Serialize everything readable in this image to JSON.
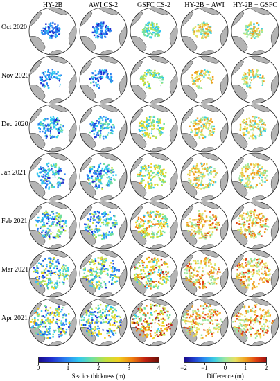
{
  "columns": [
    "HY-2B",
    "AWI CS-2",
    "GSFC CS-2",
    "HY-2B − AWI",
    "HY-2B − GSFC"
  ],
  "rows": [
    "Oct 2020",
    "Nov 2020",
    "Dec 2020",
    "Jan 2021",
    "Feb 2021",
    "Mar 2021",
    "Apr 2021"
  ],
  "colorbars": {
    "thickness": {
      "title": "Sea ice thickness (m)",
      "ticks": [
        "0",
        "1",
        "2",
        "3",
        "4"
      ],
      "colors": [
        "#1a0a8c",
        "#2030d0",
        "#2a80f0",
        "#30c8f0",
        "#70e0a0",
        "#c0e040",
        "#f0d020",
        "#f08010",
        "#c02010",
        "#6a1008"
      ]
    },
    "difference": {
      "title": "Difference (m)",
      "ticks": [
        "−2",
        "−1",
        "0",
        "1",
        "2"
      ],
      "colors": [
        "#1a0a8c",
        "#2040d0",
        "#2a90f0",
        "#40d0e0",
        "#a0e8a0",
        "#e8e060",
        "#f0a020",
        "#e04010",
        "#a01010"
      ]
    }
  },
  "map_colors": {
    "land": "#b4b4b4",
    "ocean": "#ffffff",
    "coast": "#333333"
  }
}
